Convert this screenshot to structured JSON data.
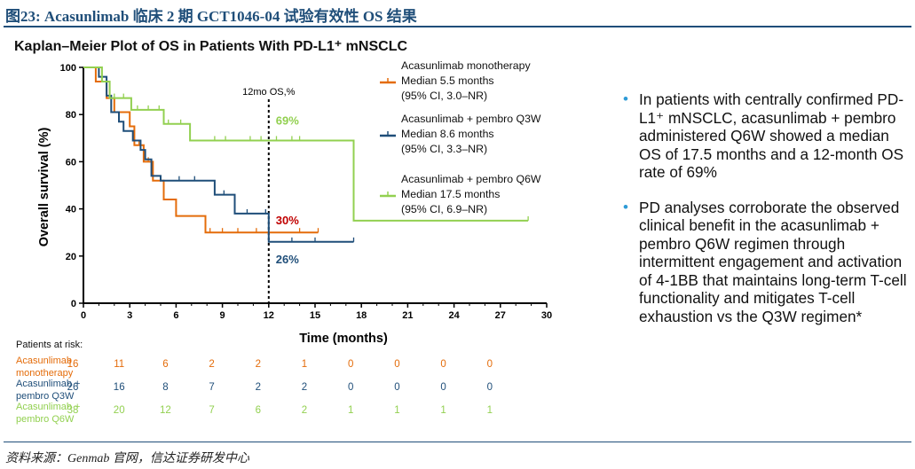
{
  "figure_title": "图23: Acasunlimab 临床 2 期 GCT1046-04 试验有效性 OS 结果",
  "source": "资料来源：Genmab 官网，信达证券研发中心",
  "chart_data": {
    "type": "line",
    "title": "Kaplan–Meier Plot of OS in Patients With PD-L1⁺ mNSCLC",
    "xlabel": "Time (months)",
    "ylabel": "Overall survival  (%)",
    "xlim": [
      0,
      30
    ],
    "ylim": [
      0,
      100
    ],
    "x_ticks": [
      0,
      3,
      6,
      9,
      12,
      15,
      18,
      21,
      24,
      27,
      30
    ],
    "y_ticks": [
      0,
      20,
      40,
      60,
      80,
      100
    ],
    "reference_line": {
      "x": 12,
      "label": "12mo OS,%"
    },
    "series": [
      {
        "name": "Acasunlimab monotherapy",
        "legend_lines": [
          "Acasunlimab monotherapy",
          "Median 5.5 months",
          "(95% CI, 3.0–NR)"
        ],
        "color": "#E46C0A",
        "steps": [
          [
            0,
            100
          ],
          [
            0.8,
            100
          ],
          [
            0.8,
            94
          ],
          [
            1.5,
            94
          ],
          [
            1.5,
            87
          ],
          [
            2.0,
            87
          ],
          [
            2.0,
            81
          ],
          [
            3.0,
            81
          ],
          [
            3.0,
            75
          ],
          [
            3.3,
            75
          ],
          [
            3.3,
            67
          ],
          [
            3.9,
            67
          ],
          [
            3.9,
            60
          ],
          [
            4.5,
            60
          ],
          [
            4.5,
            52
          ],
          [
            5.2,
            52
          ],
          [
            5.2,
            44
          ],
          [
            6.0,
            44
          ],
          [
            6.0,
            37
          ],
          [
            7.9,
            37
          ],
          [
            7.9,
            30
          ],
          [
            15.2,
            30
          ]
        ],
        "censors": [
          [
            3.6,
            67
          ],
          [
            4.2,
            60
          ],
          [
            8.2,
            30
          ],
          [
            9.0,
            30
          ],
          [
            10.0,
            30
          ],
          [
            11.2,
            30
          ],
          [
            14.0,
            30
          ],
          [
            15.2,
            30
          ]
        ],
        "os12_label": "30%",
        "os12_color": "#C00000"
      },
      {
        "name": "Acasunlimab + pembro Q3W",
        "legend_lines": [
          "Acasunlimab + pembro Q3W",
          "Median 8.6 months",
          "(95% CI, 3.3–NR)"
        ],
        "color": "#1F4E79",
        "steps": [
          [
            0,
            100
          ],
          [
            1.0,
            100
          ],
          [
            1.0,
            96
          ],
          [
            1.5,
            96
          ],
          [
            1.5,
            88
          ],
          [
            1.8,
            88
          ],
          [
            1.8,
            81
          ],
          [
            2.3,
            81
          ],
          [
            2.3,
            77
          ],
          [
            2.6,
            77
          ],
          [
            2.6,
            73
          ],
          [
            3.2,
            73
          ],
          [
            3.2,
            69
          ],
          [
            3.7,
            69
          ],
          [
            3.7,
            65
          ],
          [
            4.0,
            65
          ],
          [
            4.0,
            61
          ],
          [
            4.4,
            61
          ],
          [
            4.4,
            54
          ],
          [
            5.0,
            54
          ],
          [
            5.0,
            52
          ],
          [
            8.5,
            52
          ],
          [
            8.5,
            46
          ],
          [
            9.8,
            46
          ],
          [
            9.8,
            38
          ],
          [
            12.0,
            38
          ],
          [
            12.0,
            26
          ],
          [
            17.5,
            26
          ]
        ],
        "censors": [
          [
            6.2,
            52
          ],
          [
            7.2,
            52
          ],
          [
            9.1,
            46
          ],
          [
            10.6,
            38
          ],
          [
            11.8,
            38
          ],
          [
            13.5,
            26
          ],
          [
            15.0,
            26
          ],
          [
            17.5,
            26
          ]
        ],
        "os12_label": "26%",
        "os12_color": "#1F4E79"
      },
      {
        "name": "Acasunlimab + pembro Q6W",
        "legend_lines": [
          "Acasunlimab + pembro Q6W",
          "Median 17.5 months",
          "(95% CI, 6.9–NR)"
        ],
        "color": "#92D050",
        "steps": [
          [
            0,
            100
          ],
          [
            1.2,
            100
          ],
          [
            1.2,
            94
          ],
          [
            1.7,
            94
          ],
          [
            1.7,
            87
          ],
          [
            3.1,
            87
          ],
          [
            3.1,
            82
          ],
          [
            5.2,
            82
          ],
          [
            5.2,
            76
          ],
          [
            6.9,
            76
          ],
          [
            6.9,
            69
          ],
          [
            17.5,
            69
          ],
          [
            17.5,
            35
          ],
          [
            28.8,
            35
          ]
        ],
        "censors": [
          [
            2.0,
            87
          ],
          [
            2.6,
            87
          ],
          [
            3.5,
            82
          ],
          [
            4.2,
            82
          ],
          [
            4.9,
            82
          ],
          [
            5.5,
            76
          ],
          [
            6.3,
            76
          ],
          [
            8.5,
            69
          ],
          [
            9.2,
            69
          ],
          [
            10.8,
            69
          ],
          [
            11.5,
            69
          ],
          [
            12.5,
            69
          ],
          [
            13.5,
            69
          ],
          [
            14.0,
            69
          ],
          [
            28.8,
            35
          ]
        ],
        "os12_label": "69%",
        "os12_color": "#92D050"
      }
    ],
    "risk_table": {
      "header": "Patients at risk:",
      "times": [
        0,
        3,
        6,
        9,
        12,
        15,
        18,
        21,
        24,
        27
      ],
      "rows": [
        {
          "label_lines": [
            "Acasunlimab",
            "monotherapy"
          ],
          "color": "#E46C0A",
          "values": [
            16,
            11,
            6,
            2,
            2,
            1,
            0,
            0,
            0,
            0
          ]
        },
        {
          "label_lines": [
            "Acasunlimab +",
            "pembro Q3W"
          ],
          "color": "#1F4E79",
          "values": [
            26,
            16,
            8,
            7,
            2,
            2,
            0,
            0,
            0,
            0
          ]
        },
        {
          "label_lines": [
            "Acasunlimab +",
            "pembro Q6W"
          ],
          "color": "#92D050",
          "values": [
            38,
            20,
            12,
            7,
            6,
            2,
            1,
            1,
            1,
            1
          ]
        }
      ]
    }
  },
  "bullets": [
    "In patients with centrally confirmed PD-L1⁺ mNSCLC, acasunlimab + pembro administered Q6W showed a median OS of 17.5 months and a 12-month OS rate of 69%",
    "PD analyses corroborate the observed clinical benefit in the acasunlimab + pembro Q6W regimen through intermittent engagement and activation of 4-1BB that maintains long-term T-cell functionality and mitigates T-cell exhaustion vs the Q3W regimen*"
  ]
}
